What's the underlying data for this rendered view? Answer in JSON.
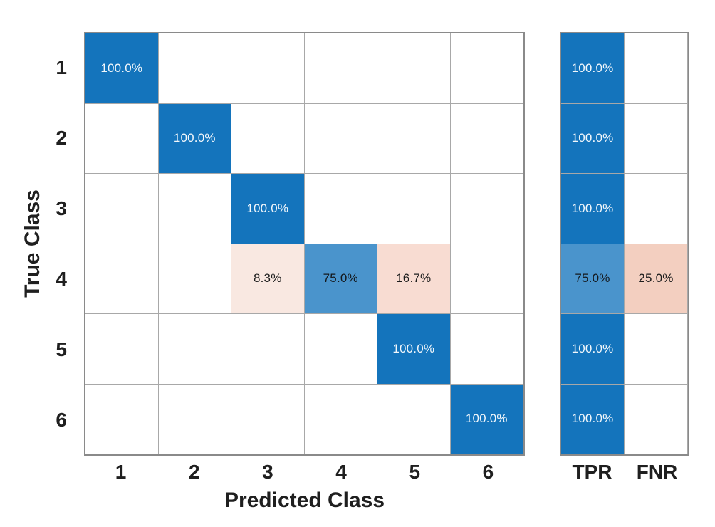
{
  "chart_data": {
    "type": "heatmap",
    "variant": "confusion-matrix",
    "title": "",
    "xlabel": "Predicted Class",
    "ylabel": "True Class",
    "x_tick_labels": [
      "1",
      "2",
      "3",
      "4",
      "5",
      "6"
    ],
    "y_tick_labels": [
      "1",
      "2",
      "3",
      "4",
      "5",
      "6"
    ],
    "summary_column_labels": [
      "TPR",
      "FNR"
    ],
    "matrix_percent": [
      [
        100.0,
        0,
        0,
        0,
        0,
        0
      ],
      [
        0,
        100.0,
        0,
        0,
        0,
        0
      ],
      [
        0,
        0,
        100.0,
        0,
        0,
        0
      ],
      [
        0,
        0,
        8.3,
        75.0,
        16.7,
        0
      ],
      [
        0,
        0,
        0,
        0,
        100.0,
        0
      ],
      [
        0,
        0,
        0,
        0,
        0,
        100.0
      ]
    ],
    "tpr_percent": [
      100.0,
      100.0,
      100.0,
      75.0,
      100.0,
      100.0
    ],
    "fnr_percent": [
      0,
      0,
      0,
      25.0,
      0,
      0
    ],
    "cells": [
      {
        "row": 0,
        "col": 0,
        "label": "100.0%",
        "bg": "#1474bc",
        "fg": "#f2f7fb"
      },
      {
        "row": 1,
        "col": 1,
        "label": "100.0%",
        "bg": "#1474bc",
        "fg": "#f2f7fb"
      },
      {
        "row": 2,
        "col": 2,
        "label": "100.0%",
        "bg": "#1474bc",
        "fg": "#f2f7fb"
      },
      {
        "row": 3,
        "col": 2,
        "label": "8.3%",
        "bg": "#f9e8e1",
        "fg": "#1d1d1d"
      },
      {
        "row": 3,
        "col": 3,
        "label": "75.0%",
        "bg": "#4a94cc",
        "fg": "#14181c"
      },
      {
        "row": 3,
        "col": 4,
        "label": "16.7%",
        "bg": "#f8dcd2",
        "fg": "#1d1d1d"
      },
      {
        "row": 4,
        "col": 4,
        "label": "100.0%",
        "bg": "#1474bc",
        "fg": "#f2f7fb"
      },
      {
        "row": 5,
        "col": 5,
        "label": "100.0%",
        "bg": "#1474bc",
        "fg": "#f2f7fb"
      }
    ],
    "summary_cells": [
      {
        "row": 0,
        "col": 0,
        "label": "100.0%",
        "bg": "#1474bc",
        "fg": "#f2f7fb"
      },
      {
        "row": 1,
        "col": 0,
        "label": "100.0%",
        "bg": "#1474bc",
        "fg": "#f2f7fb"
      },
      {
        "row": 2,
        "col": 0,
        "label": "100.0%",
        "bg": "#1474bc",
        "fg": "#f2f7fb"
      },
      {
        "row": 3,
        "col": 0,
        "label": "75.0%",
        "bg": "#4a94cc",
        "fg": "#14181c"
      },
      {
        "row": 3,
        "col": 1,
        "label": "25.0%",
        "bg": "#f3cfc0",
        "fg": "#1d1d1d"
      },
      {
        "row": 4,
        "col": 0,
        "label": "100.0%",
        "bg": "#1474bc",
        "fg": "#f2f7fb"
      },
      {
        "row": 5,
        "col": 0,
        "label": "100.0%",
        "bg": "#1474bc",
        "fg": "#f2f7fb"
      }
    ]
  },
  "colors": {
    "diagonal_blue": "#1474bc",
    "partial_blue": "#4a94cc",
    "error_pink_light": "#f9e8e1",
    "error_pink_mid": "#f8dcd2",
    "error_pink_strong": "#f3cfc0",
    "grid_line": "#a8a8a8",
    "axis_border": "#8a8a8a",
    "tick_text": "#1f1f1f",
    "background": "#ffffff"
  }
}
